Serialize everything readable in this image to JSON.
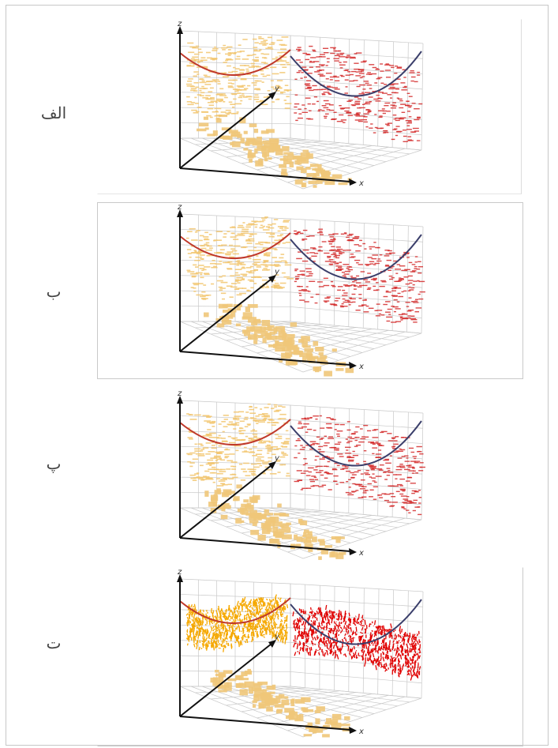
{
  "figure": {
    "panels": [
      {
        "label": "الف",
        "axes": {
          "x": "x",
          "y": "y",
          "z": "z"
        },
        "left_color": "#f2c56e",
        "right_color": "#d42a2a",
        "left_curve_color": "#c0392b",
        "right_curve_color": "#3b3f6b",
        "style": "sparse"
      },
      {
        "label": "ب",
        "axes": {
          "x": "x",
          "y": "y",
          "z": "z"
        },
        "left_color": "#f2c56e",
        "right_color": "#d42a2a",
        "left_curve_color": "#c0392b",
        "right_curve_color": "#3b3f6b",
        "style": "sparse"
      },
      {
        "label": "پ",
        "axes": {
          "x": "x",
          "y": "y",
          "z": "z"
        },
        "left_color": "#f2c56e",
        "right_color": "#d42a2a",
        "left_curve_color": "#c0392b",
        "right_curve_color": "#3b3f6b",
        "style": "sparse"
      },
      {
        "label": "ت",
        "axes": {
          "x": "x",
          "y": "y",
          "z": "z"
        },
        "left_color": "#f5a800",
        "right_color": "#e00000",
        "left_curve_color": "#c0392b",
        "right_curve_color": "#3b3f6b",
        "style": "dense"
      }
    ]
  }
}
